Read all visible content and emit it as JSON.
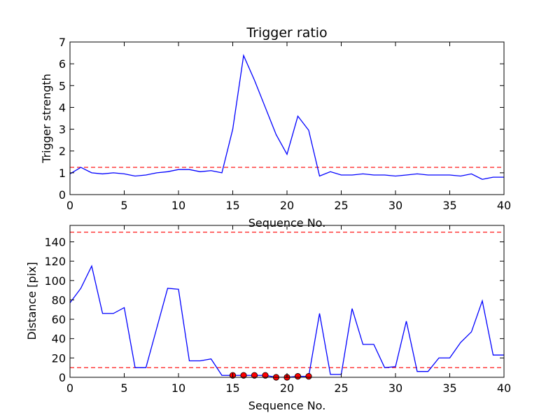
{
  "chart_data": [
    {
      "type": "line",
      "title": "Trigger ratio",
      "xlabel": "Sequence No.",
      "ylabel": "Trigger strength",
      "xlim": [
        0,
        40
      ],
      "ylim": [
        0,
        7
      ],
      "xticks": [
        0,
        5,
        10,
        15,
        20,
        25,
        30,
        35,
        40
      ],
      "yticks": [
        0,
        1,
        2,
        3,
        4,
        5,
        6,
        7
      ],
      "grid": false,
      "series": [
        {
          "style": "line",
          "color": "#0000ff",
          "x": [
            0,
            1,
            2,
            3,
            4,
            5,
            6,
            7,
            8,
            9,
            10,
            11,
            12,
            13,
            14,
            15,
            16,
            17,
            18,
            19,
            20,
            21,
            22,
            23,
            24,
            25,
            26,
            27,
            28,
            29,
            30,
            31,
            32,
            33,
            34,
            35,
            36,
            37,
            38,
            39,
            40
          ],
          "y": [
            0.95,
            1.25,
            1.0,
            0.95,
            1.0,
            0.95,
            0.85,
            0.9,
            1.0,
            1.05,
            1.15,
            1.15,
            1.05,
            1.1,
            1.0,
            3.0,
            6.38,
            5.25,
            4.0,
            2.75,
            1.85,
            3.6,
            2.95,
            0.85,
            1.05,
            0.9,
            0.9,
            0.95,
            0.9,
            0.9,
            0.85,
            0.9,
            0.95,
            0.9,
            0.9,
            0.9,
            0.85,
            0.95,
            0.7,
            0.8,
            0.8
          ]
        }
      ],
      "hlines": [
        {
          "y": 1.25,
          "color": "#ff0000",
          "style": "dashed"
        }
      ]
    },
    {
      "type": "line",
      "title": "",
      "xlabel": "Sequence No.",
      "ylabel": "Distance [pix]",
      "xlim": [
        0,
        40
      ],
      "ylim": [
        0,
        157
      ],
      "xticks": [
        0,
        5,
        10,
        15,
        20,
        25,
        30,
        35,
        40
      ],
      "yticks": [
        0,
        20,
        40,
        60,
        80,
        100,
        120,
        140
      ],
      "grid": false,
      "series": [
        {
          "style": "line",
          "color": "#0000ff",
          "x": [
            0,
            1,
            2,
            3,
            4,
            5,
            6,
            7,
            8,
            9,
            10,
            11,
            12,
            13,
            14,
            15,
            16,
            17,
            18,
            19,
            20,
            21,
            22,
            23,
            24,
            25,
            26,
            27,
            28,
            29,
            30,
            31,
            32,
            33,
            34,
            35,
            36,
            37,
            38,
            39,
            40
          ],
          "y": [
            77,
            92,
            115,
            66,
            66,
            72,
            10,
            10,
            51,
            92,
            91,
            17,
            17,
            19,
            2,
            2,
            2,
            2,
            2,
            0,
            0,
            1,
            1,
            66,
            3,
            3,
            71,
            34,
            34,
            10,
            11,
            58,
            6,
            6,
            20,
            20,
            36,
            47,
            79,
            23,
            23
          ]
        },
        {
          "style": "markers",
          "color": "#ff0000",
          "x": [
            15,
            16,
            17,
            18,
            19,
            20,
            21,
            22
          ],
          "y": [
            2,
            2,
            2,
            2,
            0,
            0,
            1,
            1
          ]
        }
      ],
      "hlines": [
        {
          "y": 150,
          "color": "#ff0000",
          "style": "dashed"
        },
        {
          "y": 10,
          "color": "#ff0000",
          "style": "dashed"
        }
      ]
    }
  ]
}
